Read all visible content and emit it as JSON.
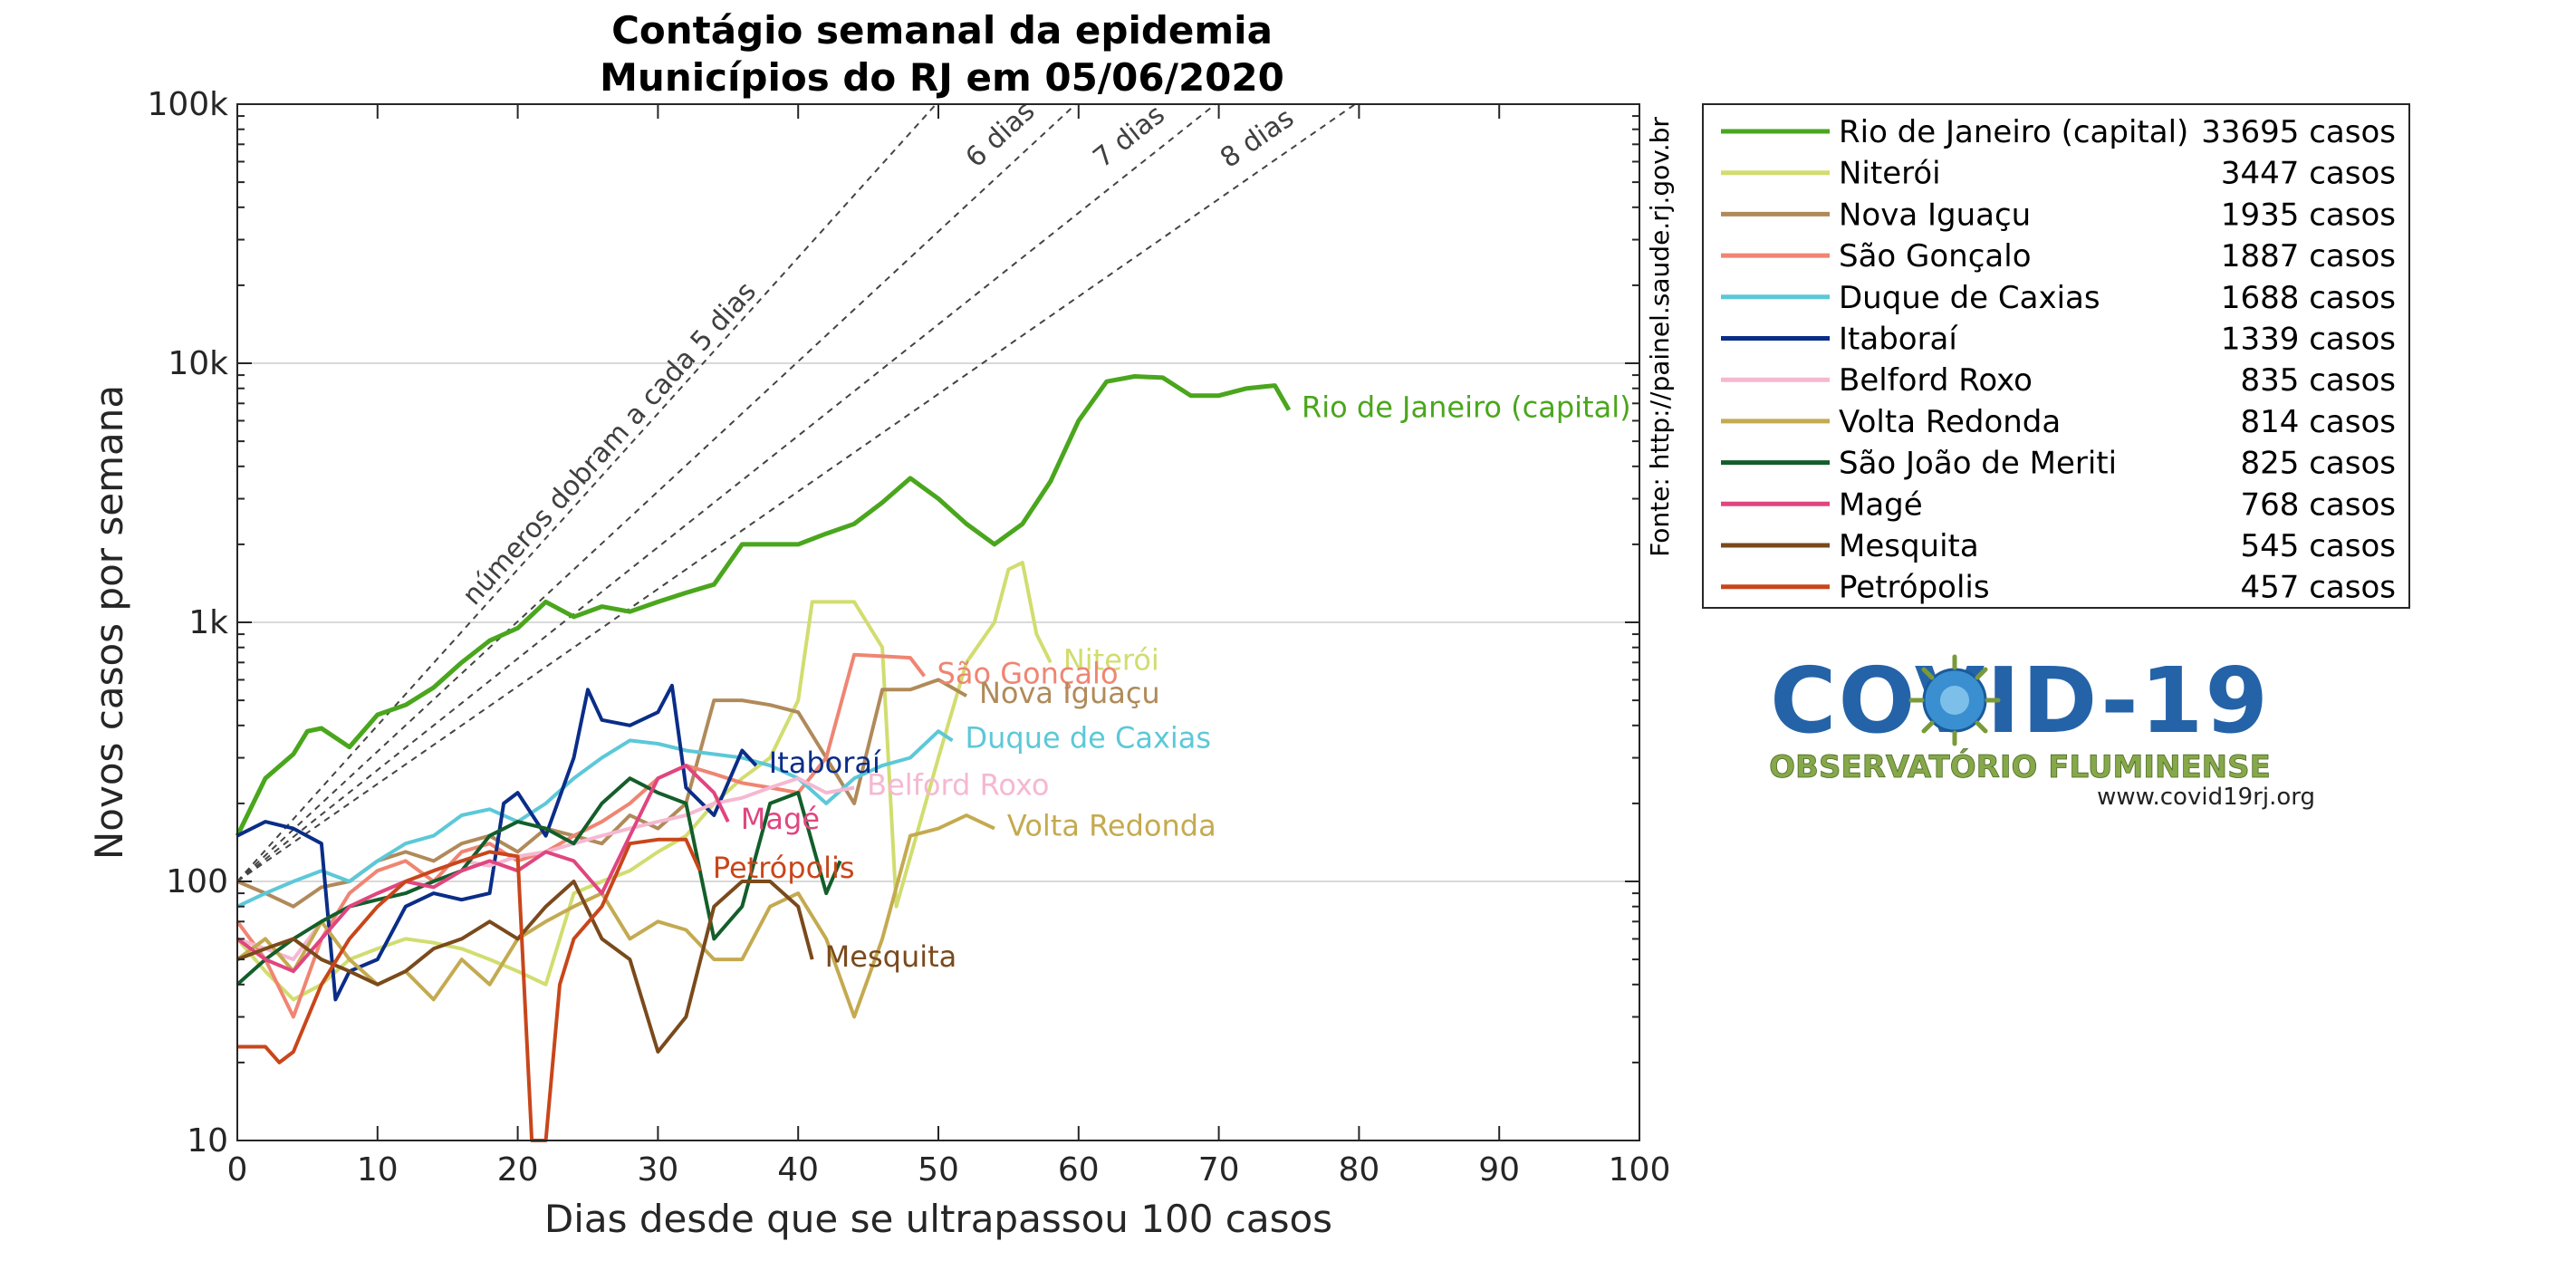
{
  "chart_data": {
    "type": "line",
    "title": "Contágio semanal da epidemia",
    "subtitle": "Municípios do RJ em 05/06/2020",
    "xlabel": "Dias desde que se ultrapassou 100 casos",
    "ylabel": "Novos casos por semana",
    "xlim": [
      0,
      100
    ],
    "ylim": [
      10,
      100000
    ],
    "yscale": "log",
    "grid": "horizontal major",
    "legend_position": "outside right",
    "xticks": [
      "0",
      "10",
      "20",
      "30",
      "40",
      "50",
      "60",
      "70",
      "80",
      "90",
      "100"
    ],
    "yticks": [
      {
        "value": 10,
        "label": "10"
      },
      {
        "value": 100,
        "label": "100"
      },
      {
        "value": 1000,
        "label": "1k"
      },
      {
        "value": 10000,
        "label": "10k"
      },
      {
        "value": 100000,
        "label": "100k"
      }
    ],
    "source_note": "Fonte: http://painel.saude.rj.gov.br",
    "doubling_guides": [
      {
        "days": 5,
        "label": "números dobram a cada 5 dias"
      },
      {
        "days": 6,
        "label": "6 dias"
      },
      {
        "days": 7,
        "label": "7 dias"
      },
      {
        "days": 8,
        "label": "8 dias"
      }
    ],
    "series": [
      {
        "name": "Rio de Janeiro (capital)",
        "cases": "33695 casos",
        "color": "#4aa61d",
        "x": [
          0,
          2,
          4,
          5,
          6,
          8,
          10,
          12,
          14,
          16,
          18,
          20,
          22,
          24,
          26,
          28,
          30,
          32,
          34,
          36,
          38,
          40,
          42,
          44,
          46,
          48,
          50,
          52,
          54,
          56,
          58,
          60,
          62,
          64,
          66,
          68,
          70,
          72,
          74,
          75
        ],
        "y": [
          150,
          250,
          310,
          380,
          390,
          330,
          440,
          480,
          560,
          700,
          850,
          950,
          1200,
          1050,
          1150,
          1100,
          1200,
          1300,
          1400,
          2000,
          2000,
          2000,
          2200,
          2400,
          2900,
          3600,
          3000,
          2400,
          2000,
          2400,
          3500,
          6000,
          8500,
          8900,
          8800,
          7500,
          7500,
          8000,
          8200,
          6600
        ]
      },
      {
        "name": "Niterói",
        "cases": "3447 casos",
        "color": "#d1dd6f",
        "x": [
          0,
          2,
          4,
          6,
          8,
          10,
          12,
          14,
          16,
          18,
          20,
          22,
          24,
          26,
          28,
          30,
          32,
          34,
          36,
          38,
          40,
          41,
          44,
          46,
          47,
          50,
          52,
          54,
          55,
          56,
          57,
          58
        ],
        "y": [
          60,
          45,
          35,
          40,
          50,
          55,
          60,
          58,
          55,
          50,
          45,
          40,
          90,
          100,
          110,
          130,
          150,
          200,
          250,
          300,
          500,
          1200,
          1200,
          800,
          80,
          300,
          700,
          1000,
          1600,
          1700,
          900,
          700
        ]
      },
      {
        "name": "Nova Iguaçu",
        "cases": "1935 casos",
        "color": "#b08a5a",
        "x": [
          0,
          2,
          4,
          6,
          8,
          10,
          12,
          14,
          16,
          18,
          20,
          22,
          24,
          26,
          28,
          30,
          32,
          34,
          36,
          38,
          40,
          42,
          44,
          46,
          48,
          50,
          52
        ],
        "y": [
          100,
          90,
          80,
          95,
          100,
          120,
          130,
          120,
          140,
          150,
          130,
          160,
          150,
          140,
          180,
          160,
          200,
          500,
          500,
          480,
          450,
          300,
          200,
          550,
          550,
          600,
          520
        ]
      },
      {
        "name": "São Gonçalo",
        "cases": "1887 casos",
        "color": "#ef8572",
        "x": [
          0,
          2,
          4,
          6,
          8,
          10,
          12,
          14,
          16,
          18,
          20,
          22,
          24,
          26,
          28,
          30,
          32,
          34,
          36,
          38,
          40,
          42,
          44,
          46,
          48,
          49
        ],
        "y": [
          70,
          50,
          30,
          60,
          90,
          110,
          120,
          100,
          130,
          140,
          120,
          130,
          150,
          170,
          200,
          250,
          280,
          260,
          240,
          230,
          220,
          300,
          750,
          740,
          730,
          620
        ]
      },
      {
        "name": "Duque de Caxias",
        "cases": "1688 casos",
        "color": "#5cc8d8",
        "x": [
          0,
          2,
          4,
          6,
          8,
          10,
          12,
          14,
          16,
          18,
          20,
          22,
          24,
          26,
          28,
          30,
          32,
          34,
          36,
          38,
          40,
          42,
          44,
          46,
          48,
          50,
          51
        ],
        "y": [
          80,
          90,
          100,
          110,
          100,
          120,
          140,
          150,
          180,
          190,
          170,
          200,
          250,
          300,
          350,
          340,
          320,
          310,
          300,
          280,
          250,
          200,
          250,
          280,
          300,
          380,
          350
        ]
      },
      {
        "name": "Itaboraí",
        "cases": "1339 casos",
        "color": "#0a2d88",
        "x": [
          0,
          2,
          4,
          6,
          7,
          8,
          10,
          12,
          14,
          16,
          18,
          19,
          20,
          22,
          24,
          25,
          26,
          28,
          30,
          31,
          32,
          34,
          36,
          37
        ],
        "y": [
          150,
          170,
          160,
          140,
          35,
          45,
          50,
          80,
          90,
          85,
          90,
          200,
          220,
          150,
          300,
          550,
          420,
          400,
          450,
          570,
          230,
          180,
          320,
          280
        ]
      },
      {
        "name": "Belford Roxo",
        "cases": "835 casos",
        "color": "#f5b8d1",
        "x": [
          0,
          2,
          4,
          6,
          8,
          10,
          12,
          14,
          16,
          18,
          20,
          22,
          24,
          26,
          28,
          30,
          32,
          34,
          36,
          38,
          40,
          42,
          44
        ],
        "y": [
          60,
          55,
          50,
          70,
          80,
          90,
          100,
          110,
          120,
          115,
          125,
          130,
          140,
          150,
          160,
          170,
          180,
          200,
          210,
          230,
          250,
          220,
          230
        ]
      },
      {
        "name": "Volta Redonda",
        "cases": "814 casos",
        "color": "#c4aa50",
        "x": [
          0,
          2,
          4,
          6,
          8,
          10,
          12,
          14,
          16,
          18,
          20,
          22,
          24,
          26,
          28,
          30,
          32,
          34,
          36,
          38,
          40,
          42,
          44,
          46,
          48,
          50,
          52,
          54
        ],
        "y": [
          50,
          60,
          45,
          70,
          50,
          40,
          45,
          35,
          50,
          40,
          60,
          70,
          80,
          90,
          60,
          70,
          65,
          50,
          50,
          80,
          90,
          60,
          30,
          60,
          150,
          160,
          180,
          160
        ]
      },
      {
        "name": "São João de Meriti",
        "cases": "825 casos",
        "color": "#135e2a",
        "x": [
          0,
          2,
          4,
          6,
          8,
          10,
          12,
          14,
          16,
          18,
          20,
          22,
          24,
          26,
          28,
          30,
          32,
          34,
          36,
          38,
          40,
          42,
          43
        ],
        "y": [
          40,
          50,
          60,
          70,
          80,
          85,
          90,
          100,
          110,
          150,
          170,
          160,
          140,
          200,
          250,
          220,
          200,
          60,
          80,
          200,
          220,
          90,
          120
        ]
      },
      {
        "name": "Magé",
        "cases": "768 casos",
        "color": "#e0457f",
        "x": [
          0,
          2,
          4,
          6,
          8,
          10,
          12,
          14,
          16,
          18,
          20,
          22,
          24,
          26,
          28,
          30,
          32,
          34,
          35
        ],
        "y": [
          60,
          50,
          45,
          60,
          80,
          90,
          100,
          95,
          110,
          120,
          110,
          130,
          120,
          90,
          150,
          250,
          280,
          220,
          170
        ]
      },
      {
        "name": "Mesquita",
        "cases": "545 casos",
        "color": "#7a4a1c",
        "x": [
          0,
          2,
          4,
          6,
          8,
          10,
          12,
          14,
          16,
          18,
          20,
          22,
          24,
          26,
          28,
          30,
          32,
          34,
          36,
          38,
          40,
          41
        ],
        "y": [
          50,
          55,
          60,
          50,
          45,
          40,
          45,
          55,
          60,
          70,
          60,
          80,
          100,
          60,
          50,
          22,
          30,
          80,
          100,
          100,
          80,
          50
        ]
      },
      {
        "name": "Petrópolis",
        "cases": "457 casos",
        "color": "#c8461b",
        "x": [
          0,
          2,
          3,
          4,
          6,
          8,
          10,
          12,
          14,
          16,
          18,
          20,
          21,
          22,
          23,
          24,
          26,
          28,
          30,
          32,
          33
        ],
        "y": [
          23,
          23,
          20,
          22,
          40,
          60,
          80,
          100,
          110,
          120,
          130,
          125,
          10,
          8,
          40,
          60,
          80,
          140,
          145,
          145,
          110
        ]
      }
    ],
    "end_labels": [
      {
        "text": "Rio de Janeiro (capital)",
        "series": 0,
        "x": 75,
        "y": 6600
      },
      {
        "text": "Niterói",
        "series": 1,
        "x": 58,
        "y": 700
      },
      {
        "text": "São Gonçalo",
        "series": 3,
        "x": 49,
        "y": 620
      },
      {
        "text": "Nova Iguaçu",
        "series": 2,
        "x": 52,
        "y": 520
      },
      {
        "text": "Duque de Caxias",
        "series": 4,
        "x": 51,
        "y": 350
      },
      {
        "text": "Itaboraí",
        "series": 5,
        "x": 37,
        "y": 280
      },
      {
        "text": "Belford Roxo",
        "series": 6,
        "x": 44,
        "y": 230
      },
      {
        "text": "Magé",
        "series": 9,
        "x": 35,
        "y": 170
      },
      {
        "text": "Volta Redonda",
        "series": 7,
        "x": 54,
        "y": 160
      },
      {
        "text": "Petrópolis",
        "series": 11,
        "x": 33,
        "y": 110
      },
      {
        "text": "Mesquita",
        "series": 10,
        "x": 41,
        "y": 50
      }
    ]
  },
  "logo": {
    "main": "COVID-19",
    "sub": "OBSERVATÓRIO FLUMINENSE",
    "url": "www.covid19rj.org",
    "colors": {
      "blue": "#2563a8",
      "green": "#86a84a"
    }
  }
}
